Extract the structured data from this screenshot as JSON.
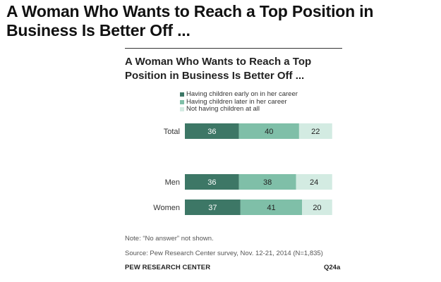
{
  "page": {
    "title": "A Woman Who Wants to Reach a Top Position in Business Is Better Off ..."
  },
  "chart_data": {
    "type": "bar",
    "orientation": "horizontal",
    "stacked": true,
    "title": "A Woman Who Wants to Reach a Top Position in Business Is Better Off ...",
    "categories": [
      "Total",
      "Men",
      "Women"
    ],
    "series": [
      {
        "name": "Having children early on in her career",
        "values": [
          36,
          36,
          37
        ],
        "color": "#3d7766"
      },
      {
        "name": "Having children later in her career",
        "values": [
          40,
          38,
          41
        ],
        "color": "#7fbfa8"
      },
      {
        "name": "Not having children at all",
        "values": [
          22,
          24,
          20
        ],
        "color": "#d3ebe2"
      }
    ],
    "xlim": [
      0,
      100
    ],
    "grid": false,
    "legend": "top-left"
  },
  "footer": {
    "note": "Note: “No answer” not shown.",
    "source": "Source: Pew Research Center survey, Nov. 12-21, 2014 (N=1,835)",
    "brand": "PEW RESEARCH CENTER",
    "code": "Q24a"
  }
}
